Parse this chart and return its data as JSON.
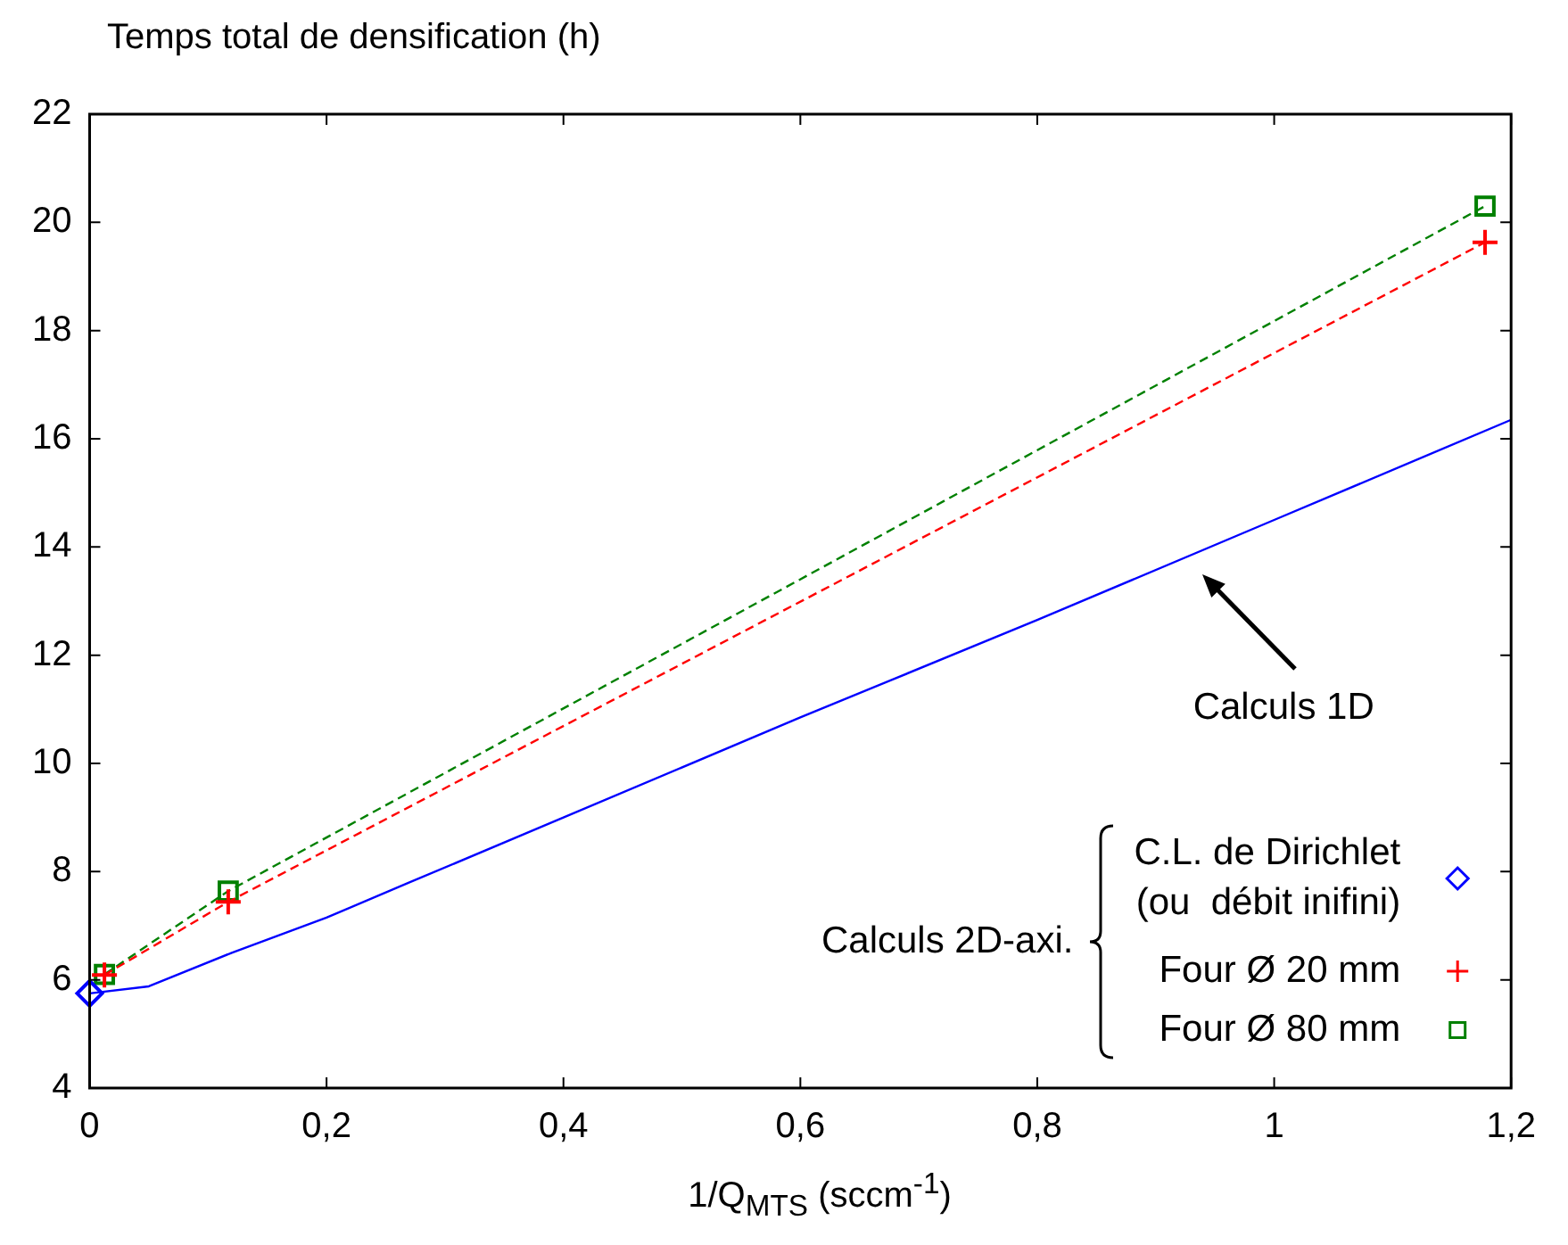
{
  "chart_data": {
    "type": "line",
    "ylabel": "Temps total de densification (h)",
    "xlabel": "1/Q$_{MTS}$ (sccm$^{-1}$)",
    "xlim": [
      0,
      1.2
    ],
    "xticks": [
      0,
      {
        "value": 0.2,
        "label": "0,2"
      },
      {
        "value": 0.4,
        "label": "0,4"
      },
      {
        "value": 0.6,
        "label": "0,6"
      },
      {
        "value": 0.8,
        "label": "0,8"
      },
      1,
      {
        "value": 1.2,
        "label": "1,2"
      }
    ],
    "ylim": [
      4,
      22
    ],
    "yticks": [
      4,
      6,
      8,
      10,
      12,
      14,
      16,
      18,
      20,
      22
    ],
    "legend": "bottom right",
    "series": [
      {
        "type": "line",
        "color": "#0000ff",
        "marker": "none",
        "line_style": "solid",
        "x": [
          0,
          0.05,
          0.12,
          0.2,
          0.27,
          0.4,
          0.6,
          0.8,
          1,
          1.2
        ],
        "values": [
          5.75,
          5.88,
          6.5,
          7.15,
          7.8,
          9.0,
          10.85,
          12.65,
          14.5,
          16.35
        ]
      },
      {
        "type": "scatter",
        "name": "C.L. de Dirichlet\n(ou  débit inifini)",
        "color": "#0000ff",
        "marker": "diamond",
        "x": [
          0
        ],
        "values": [
          5.75
        ]
      },
      {
        "type": "line",
        "name": "Four Ø 20 mm",
        "color": "#ff0000",
        "marker": "cross",
        "line_style": "dashed",
        "x": [
          0.0125,
          0.117,
          1.178
        ],
        "values": [
          6.09,
          7.44,
          19.63
        ]
      },
      {
        "type": "line",
        "name": "Four Ø 80 mm",
        "color": "#008000",
        "marker": "square",
        "line_style": "dashed",
        "x": [
          0.0125,
          0.117,
          1.178
        ],
        "values": [
          6.1,
          7.64,
          20.3
        ]
      }
    ],
    "annotations": [
      "Calculs 1D",
      "Calculs 2D-axi."
    ]
  }
}
